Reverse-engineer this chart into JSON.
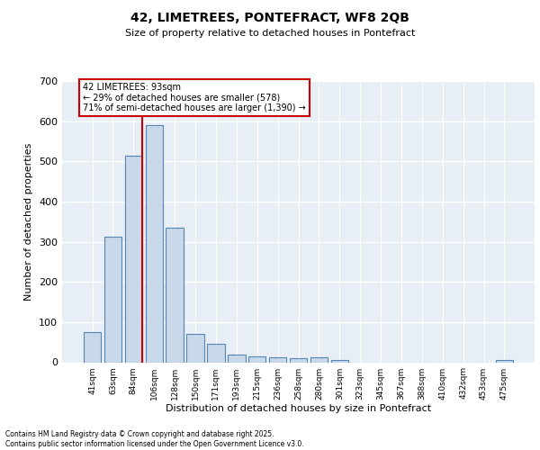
{
  "title": "42, LIMETREES, PONTEFRACT, WF8 2QB",
  "subtitle": "Size of property relative to detached houses in Pontefract",
  "xlabel": "Distribution of detached houses by size in Pontefract",
  "ylabel": "Number of detached properties",
  "categories": [
    "41sqm",
    "63sqm",
    "84sqm",
    "106sqm",
    "128sqm",
    "150sqm",
    "171sqm",
    "193sqm",
    "215sqm",
    "236sqm",
    "258sqm",
    "280sqm",
    "301sqm",
    "323sqm",
    "345sqm",
    "367sqm",
    "388sqm",
    "410sqm",
    "432sqm",
    "453sqm",
    "475sqm"
  ],
  "values": [
    75,
    312,
    515,
    590,
    335,
    70,
    45,
    20,
    15,
    12,
    11,
    12,
    6,
    0,
    0,
    0,
    0,
    0,
    0,
    0,
    5
  ],
  "bar_color": "#c8d8e8",
  "bar_edge_color": "#5585b5",
  "annotation_text": "42 LIMETREES: 93sqm\n← 29% of detached houses are smaller (578)\n71% of semi-detached houses are larger (1,390) →",
  "red_color": "#cc0000",
  "ylim": [
    0,
    700
  ],
  "yticks": [
    0,
    100,
    200,
    300,
    400,
    500,
    600,
    700
  ],
  "background_color": "#e8eef5",
  "grid_color": "#ffffff",
  "footer_line1": "Contains HM Land Registry data © Crown copyright and database right 2025.",
  "footer_line2": "Contains public sector information licensed under the Open Government Licence v3.0."
}
